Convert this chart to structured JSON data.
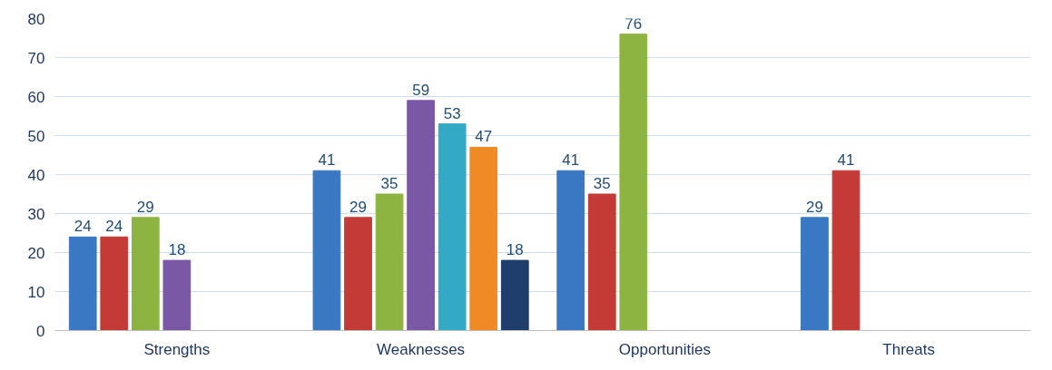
{
  "chart_data": {
    "type": "bar",
    "categories": [
      "Strengths",
      "Weaknesses",
      "Opportunities",
      "Threats"
    ],
    "series": [
      {
        "color": "#3a78c3",
        "values": [
          24,
          41,
          41,
          29
        ]
      },
      {
        "color": "#c43a36",
        "values": [
          24,
          29,
          35,
          41
        ]
      },
      {
        "color": "#8db440",
        "values": [
          29,
          35,
          76,
          null
        ]
      },
      {
        "color": "#7b58a6",
        "values": [
          18,
          59,
          null,
          null
        ]
      },
      {
        "color": "#34a9c6",
        "values": [
          null,
          53,
          null,
          null
        ]
      },
      {
        "color": "#f08a24",
        "values": [
          null,
          47,
          null,
          null
        ]
      },
      {
        "color": "#1f3e6b",
        "values": [
          null,
          18,
          null,
          null
        ]
      }
    ],
    "ylim": [
      0,
      80
    ],
    "yticks": [
      0,
      10,
      20,
      30,
      40,
      50,
      60,
      70,
      80
    ],
    "grid": "y",
    "data_labels": true
  }
}
